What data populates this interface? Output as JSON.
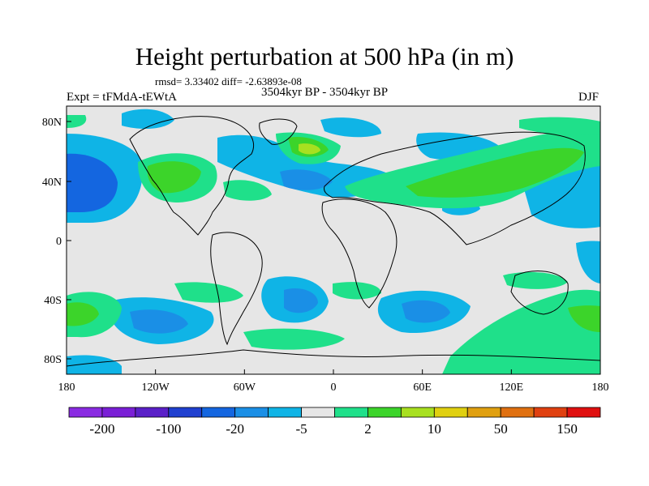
{
  "title": "Height perturbation at 500 hPa (in m)",
  "stats_line": "rmsd= 3.33402 diff= -2.63893e-08",
  "experiment_label": "Expt = tFMdA-tEWtA",
  "period_label": "3504kyr BP - 3504kyr BP",
  "season_label": "DJF",
  "lat_ticks": [
    "80N",
    "40N",
    "0",
    "40S",
    "80S"
  ],
  "lon_ticks": [
    "180",
    "120W",
    "60W",
    "0",
    "60E",
    "120E",
    "180"
  ],
  "colorbar": {
    "colors": [
      "#8a2be2",
      "#7a1fd6",
      "#5a20c8",
      "#2040d0",
      "#1466e0",
      "#1a8fe6",
      "#0fb4e6",
      "#e6e6e6",
      "#1fe08a",
      "#3cd42a",
      "#a8e020",
      "#e0d010",
      "#e0a010",
      "#e07010",
      "#e04010",
      "#e01010"
    ],
    "labels": [
      "-200",
      "-100",
      "-20",
      "-5",
      "2",
      "10",
      "50",
      "150"
    ]
  },
  "field_colors": {
    "background": "#e6e6e6",
    "neg_light": "#0fb4e6",
    "neg_mid": "#1a8fe6",
    "neg_dark": "#1466e0",
    "pos_light": "#1fe08a",
    "pos_mid": "#3cd42a",
    "pos_strong": "#a8e020"
  }
}
